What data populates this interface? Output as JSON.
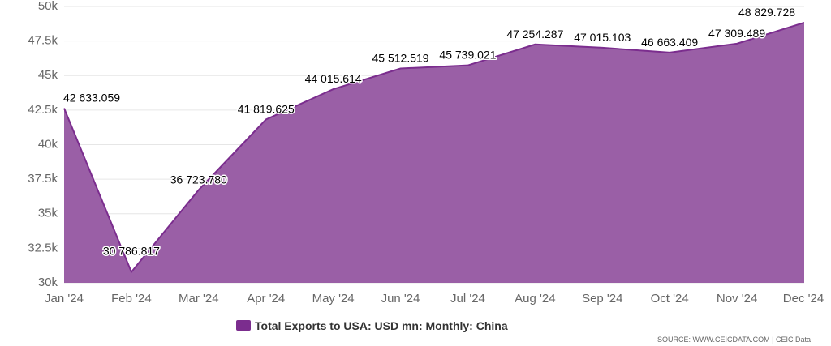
{
  "chart_data": {
    "type": "area",
    "categories": [
      "Jan '24",
      "Feb '24",
      "Mar '24",
      "Apr '24",
      "May '24",
      "Jun '24",
      "Jul '24",
      "Aug '24",
      "Sep '24",
      "Oct '24",
      "Nov '24",
      "Dec '24"
    ],
    "series": [
      {
        "name": "Total Exports to USA: USD mn: Monthly: China",
        "values": [
          42633.059,
          30786.817,
          36723.78,
          41819.625,
          44015.614,
          45512.519,
          45739.021,
          47254.287,
          47015.103,
          46663.409,
          47309.489,
          48829.728
        ],
        "labels": [
          "42 633.059",
          "30 786.817",
          "36 723.780",
          "41 819.625",
          "44 015.614",
          "45 512.519",
          "45 739.021",
          "47 254.287",
          "47 015.103",
          "46 663.409",
          "47 309.489",
          "48 829.728"
        ],
        "color": "#7b2d8e"
      }
    ],
    "ylim": [
      30000,
      50000
    ],
    "yticks": [
      30000,
      32500,
      35000,
      37500,
      40000,
      42500,
      45000,
      47500,
      50000
    ],
    "ytick_labels": [
      "30k",
      "32.5k",
      "35k",
      "37.5k",
      "40k",
      "42.5k",
      "45k",
      "47.5k",
      "50k"
    ],
    "grid": true,
    "legend_position": "bottom-center"
  },
  "legend": {
    "label": "Total Exports to USA: USD mn: Monthly: China",
    "color": "#7b2d8e"
  },
  "source": "SOURCE: WWW.CEICDATA.COM | CEIC Data",
  "colors": {
    "area_fill": "#9a5fa6",
    "area_line": "#7b2d8e",
    "grid": "#e6e6e6"
  }
}
